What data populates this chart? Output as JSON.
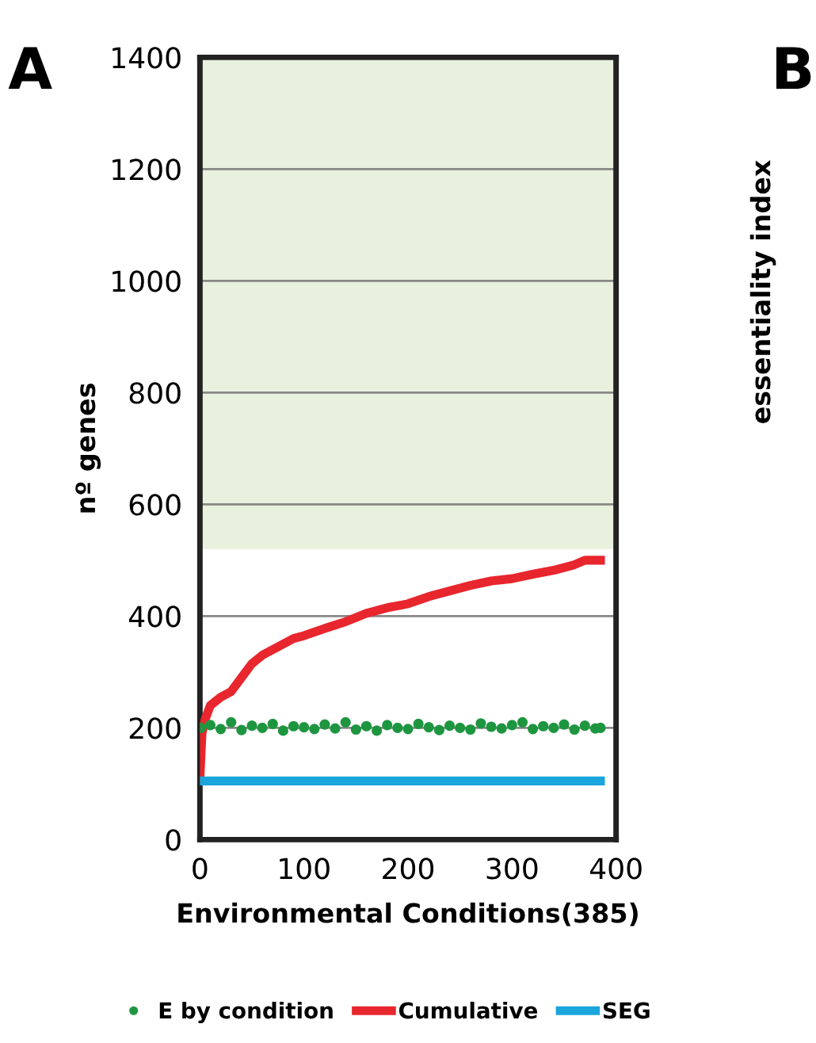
{
  "chart_data": {
    "type": "line",
    "xlabel": "Environmental Conditions(385)",
    "ylabel": "nº genes",
    "xlim": [
      0,
      400
    ],
    "xticks": [
      0,
      100,
      200,
      300,
      400
    ],
    "ylim": [
      0,
      1400
    ],
    "yticks": [
      0,
      200,
      400,
      600,
      800,
      1000,
      1200,
      1400
    ],
    "grid": "y",
    "legend": "bottom",
    "annotations": [
      "A",
      "B",
      "essentiality index"
    ],
    "bands": [
      {
        "axis": "y",
        "from": 520,
        "to": 1400,
        "color": "#e8f0de"
      }
    ],
    "series": [
      {
        "name": "E by condition",
        "type": "scatter",
        "marker": "circle",
        "color": "#1e9640",
        "x": [
          1,
          10,
          20,
          30,
          40,
          50,
          60,
          70,
          80,
          90,
          100,
          110,
          120,
          130,
          140,
          150,
          160,
          170,
          180,
          190,
          200,
          210,
          220,
          230,
          240,
          250,
          260,
          270,
          280,
          290,
          300,
          310,
          320,
          330,
          340,
          350,
          360,
          370,
          380,
          385
        ],
        "values": [
          200,
          205,
          198,
          210,
          196,
          204,
          200,
          207,
          195,
          203,
          201,
          198,
          206,
          199,
          210,
          197,
          203,
          195,
          205,
          200,
          198,
          207,
          201,
          196,
          204,
          200,
          197,
          208,
          202,
          199,
          205,
          210,
          198,
          203,
          200,
          206,
          197,
          204,
          199,
          200
        ]
      },
      {
        "name": "Cumulative",
        "marker": "none",
        "color": "#e8262e",
        "x": [
          0,
          1,
          2,
          5,
          10,
          20,
          30,
          40,
          50,
          60,
          75,
          90,
          100,
          120,
          140,
          160,
          180,
          200,
          220,
          240,
          260,
          280,
          300,
          320,
          340,
          360,
          370,
          385
        ],
        "values": [
          110,
          150,
          190,
          215,
          240,
          255,
          265,
          290,
          315,
          330,
          345,
          360,
          365,
          378,
          390,
          405,
          415,
          422,
          435,
          445,
          455,
          463,
          467,
          475,
          482,
          492,
          500,
          500
        ]
      },
      {
        "name": "SEG",
        "marker": "none",
        "color": "#1aa5dc",
        "x": [
          0,
          385
        ],
        "values": [
          105,
          105
        ]
      }
    ]
  }
}
